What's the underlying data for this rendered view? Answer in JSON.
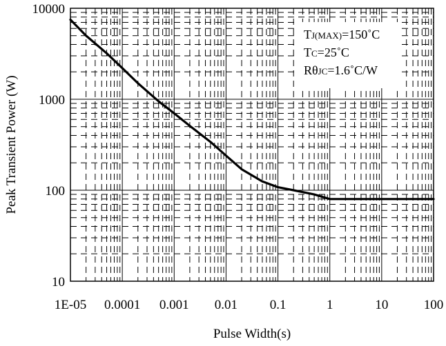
{
  "chart_data": {
    "type": "line",
    "title": "",
    "xlabel": "Pulse Width(s)",
    "ylabel": "Peak Transient Power (W)",
    "x_scale": "log",
    "y_scale": "log",
    "xlim": [
      1e-05,
      100
    ],
    "ylim": [
      10,
      10000
    ],
    "grid": true,
    "legend": "none",
    "x_ticks": [
      1e-05,
      0.0001,
      0.001,
      0.01,
      0.1,
      1,
      10,
      100
    ],
    "x_tick_labels": [
      "1E-05",
      "0.0001",
      "0.001",
      "0.01",
      "0.1",
      "1",
      "10",
      "100"
    ],
    "y_ticks": [
      10,
      100,
      1000,
      10000
    ],
    "y_tick_labels": [
      "10",
      "100",
      "1000",
      "10000"
    ],
    "series": [
      {
        "color": "#000000",
        "x": [
          1e-05,
          2e-05,
          5e-05,
          0.0001,
          0.0002,
          0.0005,
          0.001,
          0.002,
          0.005,
          0.01,
          0.02,
          0.05,
          0.1,
          0.2,
          0.5,
          1,
          2,
          5,
          10,
          20,
          50,
          100
        ],
        "y": [
          7500,
          5000,
          3200,
          2200,
          1500,
          950,
          700,
          510,
          340,
          240,
          170,
          125,
          108,
          100,
          90,
          80,
          80,
          80,
          80,
          80,
          80,
          80
        ]
      }
    ],
    "annotations": [
      {
        "main": "T",
        "sub": "J(MAX)",
        "rest": "=150˚C"
      },
      {
        "main": "T",
        "sub": "C",
        "rest": "=25˚C"
      },
      {
        "main": "Rθ",
        "sub": "JC",
        "rest": "=1.6˚C/W"
      }
    ]
  }
}
